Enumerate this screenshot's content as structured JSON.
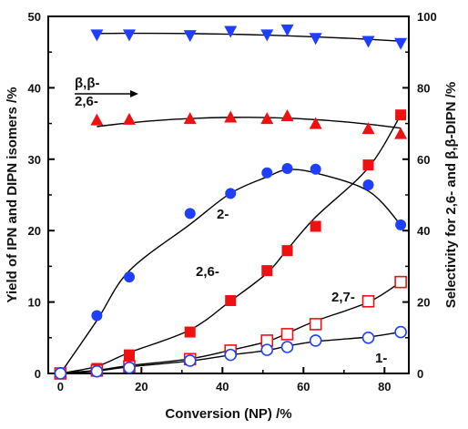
{
  "chart_data": {
    "type": "scatter",
    "xlabel": "Conversion (NP) /%",
    "ylabel_left": "Yield of IPN and DIPN isomers /%",
    "ylabel_right": "Selectivity for 2,6- and β,β-DIPN /%",
    "xlim": [
      -3,
      86
    ],
    "ylim_left": [
      0,
      50
    ],
    "ylim_right": [
      0,
      100
    ],
    "xticks": [
      "0",
      "20",
      "40",
      "60",
      "80"
    ],
    "yticks_left": [
      "0",
      "10",
      "20",
      "30",
      "40",
      "50"
    ],
    "yticks_right": [
      "0",
      "20",
      "40",
      "60",
      "80",
      "100"
    ],
    "grid": false,
    "series": [
      {
        "name": "β,β-",
        "axis": "right",
        "color": "#1f3fff",
        "marker": "triangle-down",
        "x": [
          9,
          17,
          32,
          42,
          51,
          56,
          63,
          76,
          84
        ],
        "values": [
          94.8,
          94.8,
          94.6,
          95.8,
          94.8,
          96.2,
          93.8,
          93.0,
          92.4
        ]
      },
      {
        "name": "2,6-",
        "axis": "right",
        "color": "#ee1111",
        "marker": "triangle-up",
        "x": [
          9,
          17,
          32,
          42,
          51,
          56,
          63,
          76,
          84
        ],
        "values": [
          71.0,
          71.2,
          71.4,
          71.8,
          71.4,
          72.2,
          70.0,
          68.6,
          67.2
        ]
      },
      {
        "name": "2-",
        "axis": "left",
        "color": "#1f3fff",
        "marker": "circle-filled",
        "x": [
          0,
          9,
          17,
          32,
          42,
          51,
          56,
          63,
          76,
          84
        ],
        "values": [
          0,
          8.1,
          13.5,
          22.4,
          25.2,
          28.1,
          28.7,
          28.6,
          26.4,
          20.8
        ]
      },
      {
        "name": "2,6-",
        "axis": "left",
        "color": "#ee1111",
        "marker": "square-filled",
        "x": [
          0,
          9,
          17,
          32,
          42,
          51,
          56,
          63,
          76,
          84
        ],
        "values": [
          0,
          0.7,
          2.6,
          5.8,
          10.2,
          14.4,
          17.2,
          20.6,
          29.2,
          36.2
        ]
      },
      {
        "name": "2,7-",
        "axis": "left",
        "color": "#ee1111",
        "marker": "square-open",
        "x": [
          0,
          9,
          17,
          32,
          42,
          51,
          56,
          63,
          76,
          84
        ],
        "values": [
          0,
          0.4,
          1.0,
          2.0,
          3.2,
          4.6,
          5.5,
          6.9,
          10.1,
          12.8
        ]
      },
      {
        "name": "1-",
        "axis": "left",
        "color": "#1f3fff",
        "marker": "circle-open",
        "x": [
          0,
          9,
          17,
          32,
          42,
          51,
          56,
          63,
          76,
          84
        ],
        "values": [
          0,
          0.3,
          0.8,
          1.8,
          2.6,
          3.3,
          3.7,
          4.6,
          5.0,
          5.8
        ]
      }
    ],
    "annotations": [
      {
        "text": "β,β-",
        "target": "β,β- selectivity (arrow pointing right)"
      },
      {
        "text": "2,6-",
        "target": "2,6- selectivity"
      },
      {
        "text": "2-",
        "target": "2-IPN yield"
      },
      {
        "text": "2,6-",
        "target": "2,6-DIPN yield"
      },
      {
        "text": "2,7-",
        "target": "2,7-DIPN yield"
      },
      {
        "text": "1-",
        "target": "1-IPN yield"
      }
    ]
  }
}
